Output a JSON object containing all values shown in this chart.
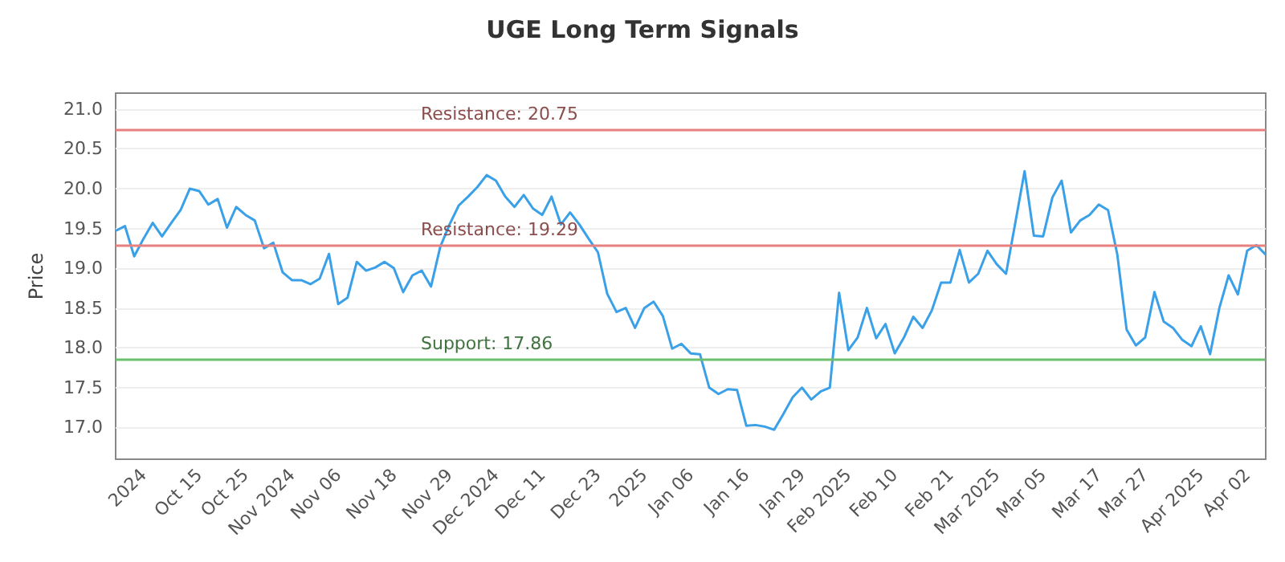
{
  "chart_data": {
    "type": "line",
    "title": "UGE Long Term Signals",
    "ylabel": "Price",
    "categories": [
      null,
      null,
      null,
      "2024",
      null,
      null,
      null,
      null,
      null,
      "Oct 15",
      null,
      null,
      null,
      null,
      "Oct 25",
      null,
      null,
      null,
      null,
      "Nov 2024",
      null,
      null,
      null,
      null,
      "Nov 06",
      null,
      null,
      null,
      null,
      null,
      "Nov 18",
      null,
      null,
      null,
      null,
      null,
      "Nov 29",
      null,
      null,
      null,
      null,
      "Dec 2024",
      null,
      null,
      null,
      null,
      "Dec 11",
      null,
      null,
      null,
      null,
      null,
      "Dec 23",
      null,
      null,
      null,
      null,
      "2025",
      null,
      null,
      null,
      null,
      "Jan 06",
      null,
      null,
      null,
      null,
      null,
      "Jan 16",
      null,
      null,
      null,
      null,
      null,
      "Jan 29",
      null,
      null,
      null,
      null,
      "Feb 2025",
      null,
      null,
      null,
      null,
      "Feb 10",
      null,
      null,
      null,
      null,
      null,
      "Feb 21",
      null,
      null,
      null,
      null,
      "Mar 2025",
      null,
      null,
      null,
      null,
      "Mar 05",
      null,
      null,
      null,
      null,
      null,
      "Mar 17",
      null,
      null,
      null,
      null,
      "Mar 27",
      null,
      null,
      null,
      null,
      null,
      "Apr 2025",
      null,
      null,
      null,
      null,
      "Apr 02",
      null,
      null
    ],
    "series": [
      {
        "color": "#3aa0e8",
        "values": [
          19.47,
          19.53,
          19.15,
          19.37,
          19.57,
          19.4,
          19.57,
          19.73,
          20.0,
          19.97,
          19.8,
          19.87,
          19.51,
          19.77,
          19.67,
          19.6,
          19.25,
          19.32,
          18.95,
          18.85,
          18.85,
          18.8,
          18.87,
          19.18,
          18.55,
          18.63,
          19.08,
          18.97,
          19.01,
          19.08,
          19.0,
          18.7,
          18.91,
          18.97,
          18.77,
          19.27,
          19.55,
          19.79,
          19.9,
          20.02,
          20.17,
          20.1,
          19.9,
          19.77,
          19.92,
          19.75,
          19.67,
          19.9,
          19.55,
          19.7,
          19.55,
          19.37,
          19.2,
          18.68,
          18.45,
          18.5,
          18.25,
          18.5,
          18.58,
          18.4,
          17.99,
          18.05,
          17.93,
          17.92,
          17.5,
          17.42,
          17.48,
          17.47,
          17.02,
          17.03,
          17.01,
          16.97,
          17.17,
          17.38,
          17.5,
          17.35,
          17.45,
          17.5,
          18.69,
          17.97,
          18.13,
          18.5,
          18.12,
          18.3,
          17.93,
          18.13,
          18.39,
          18.25,
          18.47,
          18.82,
          18.82,
          19.23,
          18.82,
          18.93,
          19.22,
          19.05,
          18.93,
          19.57,
          20.22,
          19.41,
          19.4,
          19.89,
          20.1,
          19.45,
          19.6,
          19.67,
          19.8,
          19.73,
          19.17,
          18.23,
          18.03,
          18.13,
          18.7,
          18.33,
          18.25,
          18.1,
          18.02,
          18.27,
          17.92,
          18.5,
          18.91,
          18.67,
          19.22,
          19.29,
          19.17
        ]
      }
    ],
    "ylim": [
      16.6,
      21.2
    ],
    "yticks": [
      {
        "value": 17,
        "label": "17.0"
      },
      17.5,
      {
        "value": 18,
        "label": "18.0"
      },
      18.5,
      {
        "value": 19,
        "label": "19.0"
      },
      19.5,
      {
        "value": 20,
        "label": "20.0"
      },
      20.5,
      {
        "value": 21,
        "label": "21.0"
      }
    ],
    "grid": "y",
    "marker": "none",
    "line_style": "solid",
    "ref_lines": [
      {
        "axis": "y",
        "value": 20.75,
        "label": "Resistance: 20.75",
        "color": "#e88080"
      },
      {
        "axis": "y",
        "value": 19.29,
        "label": "Resistance: 19.29",
        "color": "#e88080"
      },
      {
        "axis": "y",
        "value": 17.86,
        "label": "Support: 17.86",
        "color": "#6cbf6c"
      }
    ]
  }
}
